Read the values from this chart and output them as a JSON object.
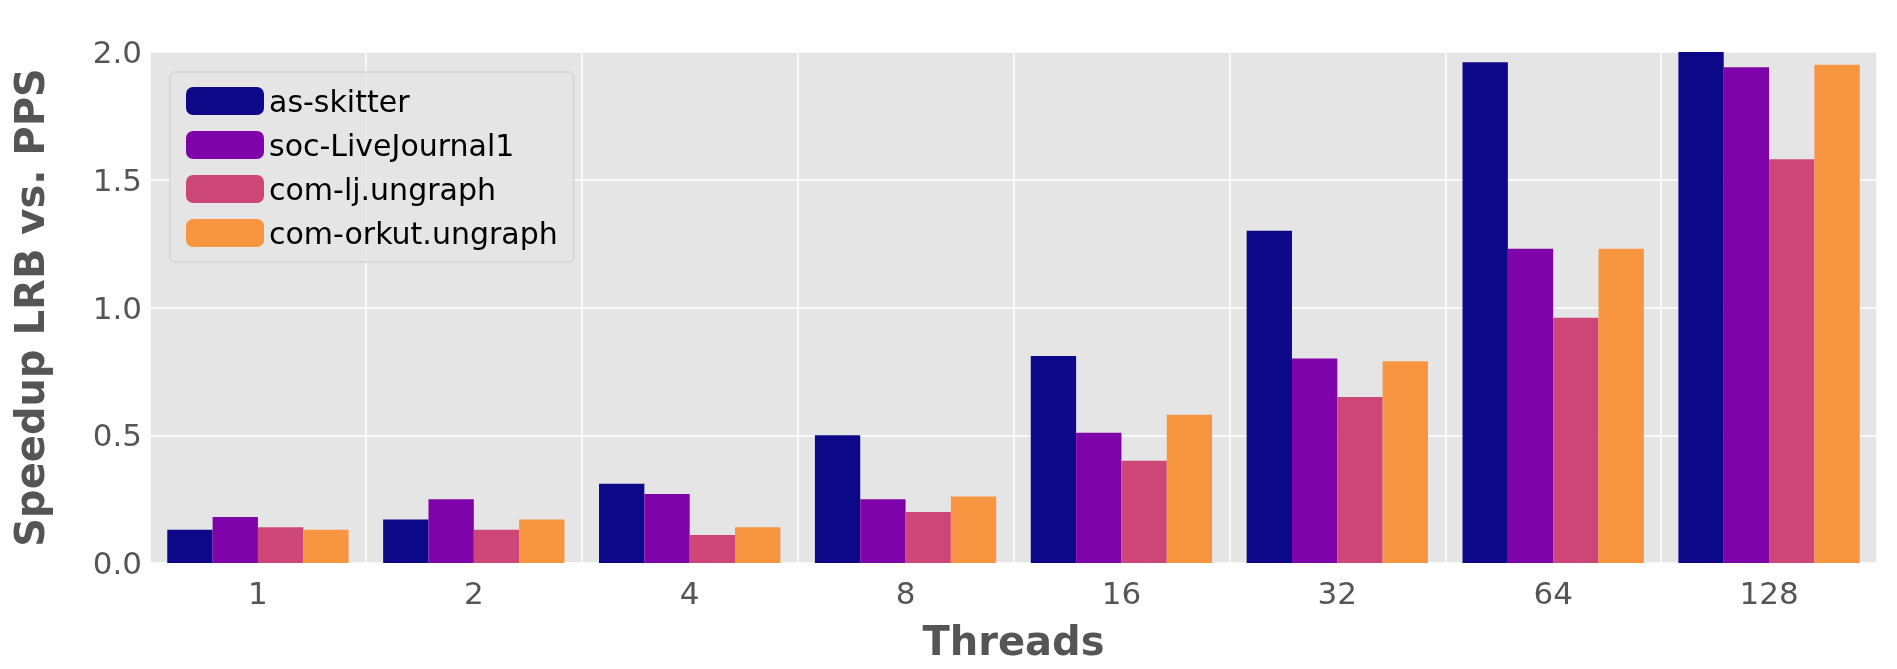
{
  "chart_data": {
    "type": "bar",
    "xlabel": "Threads",
    "ylabel": "Speedup LRB vs. PPS",
    "categories": [
      "1",
      "2",
      "4",
      "8",
      "16",
      "32",
      "64",
      "128"
    ],
    "series": [
      {
        "name": "as-skitter",
        "color": "#0d0887",
        "values": [
          0.13,
          0.17,
          0.31,
          0.5,
          0.81,
          1.3,
          1.96,
          2.0
        ]
      },
      {
        "name": "soc-LiveJournal1",
        "color": "#7e03a8",
        "values": [
          0.18,
          0.25,
          0.27,
          0.25,
          0.51,
          0.8,
          1.23,
          1.94
        ]
      },
      {
        "name": "com-lj.ungraph",
        "color": "#cc4778",
        "values": [
          0.14,
          0.13,
          0.11,
          0.2,
          0.4,
          0.65,
          0.96,
          1.58
        ]
      },
      {
        "name": "com-orkut.ungraph",
        "color": "#f89540",
        "values": [
          0.13,
          0.17,
          0.14,
          0.26,
          0.58,
          0.79,
          1.23,
          1.95
        ]
      }
    ],
    "ylim": [
      0,
      2
    ],
    "yticks": [
      {
        "value": 0,
        "label": "0.0"
      },
      {
        "value": 0.5,
        "label": "0.5"
      },
      {
        "value": 1,
        "label": "1.0"
      },
      {
        "value": 1.5,
        "label": "1.5"
      },
      {
        "value": 2,
        "label": "2.0"
      }
    ],
    "grid": true,
    "legend": "top left"
  }
}
